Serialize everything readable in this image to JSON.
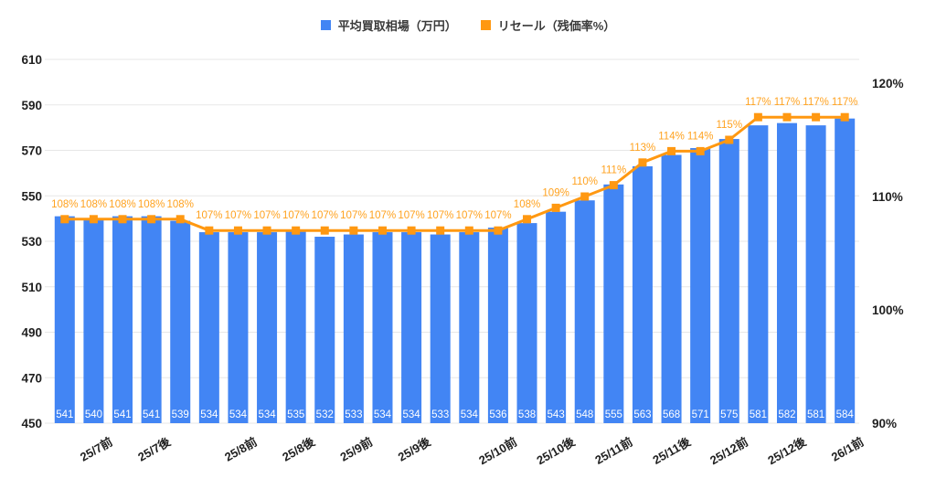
{
  "legend": [
    {
      "label": "平均買取相場（万円）",
      "color": "#4285F4"
    },
    {
      "label": "リセール（残価率%）",
      "color": "#FF9811"
    }
  ],
  "chart_data": {
    "type": "bar",
    "subtype": "bar-line-combo",
    "title": "",
    "legend_position": "top",
    "grid": true,
    "categories": [
      "25/7前",
      "25/7後",
      "25/8前",
      "25/8後",
      "25/9前",
      "25/9後",
      "25/10前",
      "25/10後",
      "25/11前",
      "25/11後",
      "25/12前",
      "25/12後",
      "26/1前"
    ],
    "x_tick_labels": [
      {
        "label": "25/7前",
        "after_bar": 2
      },
      {
        "label": "25/7後",
        "after_bar": 4
      },
      {
        "label": "25/8前",
        "after_bar": 7
      },
      {
        "label": "25/8後",
        "after_bar": 9
      },
      {
        "label": "25/9前",
        "after_bar": 11
      },
      {
        "label": "25/9後",
        "after_bar": 13
      },
      {
        "label": "25/10前",
        "after_bar": 16
      },
      {
        "label": "25/10後",
        "after_bar": 18
      },
      {
        "label": "25/11前",
        "after_bar": 20
      },
      {
        "label": "25/11後",
        "after_bar": 22
      },
      {
        "label": "25/12前",
        "after_bar": 24
      },
      {
        "label": "25/12後",
        "after_bar": 26
      },
      {
        "label": "26/1前",
        "after_bar": 28
      }
    ],
    "series": [
      {
        "name": "平均買取相場（万円）",
        "type": "bar",
        "axis": "left",
        "color": "#4285F4",
        "values": [
          541,
          540,
          541,
          541,
          539,
          534,
          534,
          534,
          535,
          532,
          533,
          534,
          534,
          533,
          534,
          536,
          538,
          543,
          548,
          555,
          563,
          568,
          571,
          575,
          581,
          582,
          581,
          584
        ]
      },
      {
        "name": "リセール（残価率%）",
        "type": "line",
        "axis": "right",
        "color": "#FF9811",
        "values": [
          108,
          108,
          108,
          108,
          108,
          107,
          107,
          107,
          107,
          107,
          107,
          107,
          107,
          107,
          107,
          107,
          108,
          109,
          110,
          111,
          113,
          114,
          114,
          115,
          117,
          117,
          117,
          117
        ],
        "suffix": "%"
      }
    ],
    "left_axis": {
      "min": 450,
      "max": 610,
      "ticks": [
        450,
        470,
        490,
        510,
        530,
        550,
        570,
        590,
        610
      ]
    },
    "right_axis": {
      "min": 90,
      "max": 120,
      "ticks": [
        90,
        100,
        110,
        120
      ],
      "suffix": "%"
    },
    "colors": {
      "bar": "#4285F4",
      "line": "#FF9811",
      "percent_label": "#FFA21F",
      "bar_value_text": "#FFFFFF",
      "axis_text": "#1F1F1F",
      "gridline": "#E7E7E7"
    }
  }
}
